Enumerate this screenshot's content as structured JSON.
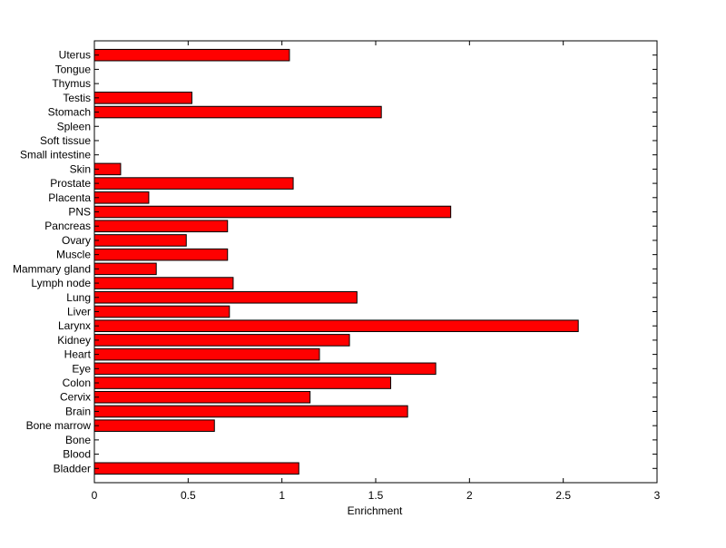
{
  "chart_data": {
    "type": "bar",
    "orientation": "horizontal",
    "title": "",
    "xlabel": "Enrichment",
    "ylabel": "",
    "xlim": [
      0,
      3
    ],
    "xticks": [
      "0",
      "0.5",
      "1",
      "1.5",
      "2",
      "2.5",
      "3"
    ],
    "grid": false,
    "legend": "none",
    "bar_color": "#ff0000",
    "bar_edge_color": "#000000",
    "categories": [
      "Bladder",
      "Blood",
      "Bone",
      "Bone marrow",
      "Brain",
      "Cervix",
      "Colon",
      "Eye",
      "Heart",
      "Kidney",
      "Larynx",
      "Liver",
      "Lung",
      "Lymph node",
      "Mammary gland",
      "Muscle",
      "Ovary",
      "Pancreas",
      "PNS",
      "Placenta",
      "Prostate",
      "Skin",
      "Small intestine",
      "Soft tissue",
      "Spleen",
      "Stomach",
      "Testis",
      "Thymus",
      "Tongue",
      "Uterus"
    ],
    "values": [
      1.09,
      0,
      0,
      0.64,
      1.67,
      1.15,
      1.58,
      1.82,
      1.2,
      1.36,
      2.58,
      0.72,
      1.4,
      0.74,
      0.33,
      0.71,
      0.49,
      0.71,
      1.9,
      0.29,
      1.06,
      0.14,
      0,
      0,
      0,
      1.53,
      0.52,
      0,
      0,
      1.04
    ]
  }
}
